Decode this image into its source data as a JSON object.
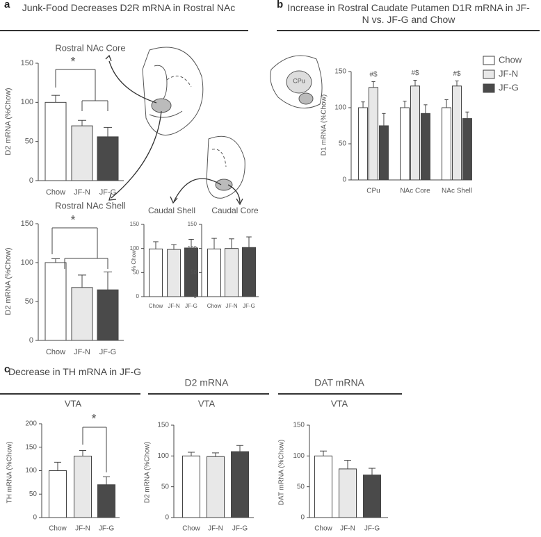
{
  "panels": [
    {
      "letter": "a",
      "title": "Junk-Food Decreases D2R mRNA in Rostral NAc"
    },
    {
      "letter": "b",
      "title": "Increase in Rostral Caudate Putamen D1R mRNA in JF-N vs. JF-G and Chow"
    },
    {
      "letter": "c",
      "title": "Decrease in TH mRNA in JF-G"
    }
  ],
  "brain_label": "CPu",
  "chart_data": [
    {
      "type": "bar",
      "title": "Rostral NAc Core",
      "y_label": "D2 mRNA (%Chow)",
      "categories": [
        "Chow",
        "JF-N",
        "JF-G"
      ],
      "values": [
        100,
        70,
        56
      ],
      "errors": [
        9,
        7,
        12
      ],
      "colors": [
        "#ffffff",
        "#e8e8e8",
        "#4a4a4a"
      ],
      "ylim": [
        0,
        150
      ],
      "yticks": [
        0,
        50,
        100,
        150
      ],
      "annotation": "*"
    },
    {
      "type": "bar",
      "title": "Rostral NAc Shell",
      "y_label": "D2 mRNA (%Chow)",
      "categories": [
        "Chow",
        "JF-N",
        "JF-G"
      ],
      "values": [
        100,
        68,
        65
      ],
      "errors": [
        5,
        16,
        23
      ],
      "colors": [
        "#ffffff",
        "#e8e8e8",
        "#4a4a4a"
      ],
      "ylim": [
        0,
        150
      ],
      "yticks": [
        0,
        50,
        100,
        150
      ],
      "annotation": "*"
    },
    {
      "type": "bar",
      "title": "Caudal Shell",
      "y_label": "% Chow",
      "categories": [
        "Chow",
        "JF-N",
        "JF-G"
      ],
      "values": [
        99,
        98,
        101
      ],
      "errors": [
        15,
        10,
        18
      ],
      "colors": [
        "#ffffff",
        "#e8e8e8",
        "#4a4a4a"
      ],
      "ylim": [
        0,
        150
      ],
      "yticks": [
        0,
        50,
        100,
        150
      ]
    },
    {
      "type": "bar",
      "title": "Caudal Core",
      "categories": [
        "Chow",
        "JF-N",
        "JF-G"
      ],
      "values": [
        99,
        100,
        102
      ],
      "errors": [
        22,
        20,
        22
      ],
      "colors": [
        "#ffffff",
        "#e8e8e8",
        "#4a4a4a"
      ],
      "ylim": [
        0,
        150
      ],
      "yticks": [
        0,
        50,
        100,
        150
      ]
    },
    {
      "type": "bar",
      "y_label": "D1 mRNA (%Chow)",
      "categories": [
        "CPu",
        "NAc Core",
        "NAc Shell"
      ],
      "series": [
        {
          "name": "Chow",
          "color": "#ffffff",
          "values": [
            100,
            100,
            100
          ],
          "errors": [
            8,
            9,
            11
          ]
        },
        {
          "name": "JF-N",
          "color": "#e8e8e8",
          "values": [
            128,
            130,
            130
          ],
          "errors": [
            8,
            8,
            7
          ]
        },
        {
          "name": "JF-G",
          "color": "#4a4a4a",
          "values": [
            75,
            92,
            85
          ],
          "errors": [
            17,
            12,
            9
          ]
        }
      ],
      "annotations": [
        "#$",
        "#$",
        "#$"
      ],
      "ylim": [
        0,
        150
      ],
      "yticks": [
        0,
        50,
        100,
        150
      ],
      "legend": "upper right"
    },
    {
      "type": "bar",
      "subtitle": "VTA",
      "y_label": "TH mRNA  (%Chow)",
      "categories": [
        "Chow",
        "JF-N",
        "JF-G"
      ],
      "values": [
        100,
        131,
        70
      ],
      "errors": [
        18,
        12,
        17
      ],
      "colors": [
        "#ffffff",
        "#e8e8e8",
        "#4a4a4a"
      ],
      "ylim": [
        0,
        200
      ],
      "yticks": [
        0,
        50,
        100,
        150,
        200
      ],
      "annotation": "*"
    },
    {
      "type": "bar",
      "title": "D2 mRNA",
      "subtitle": "VTA",
      "y_label": "D2 mRNA (%Chow)",
      "categories": [
        "Chow",
        "JF-N",
        "JF-G"
      ],
      "values": [
        100,
        99,
        107
      ],
      "errors": [
        6,
        6,
        10
      ],
      "colors": [
        "#ffffff",
        "#e8e8e8",
        "#4a4a4a"
      ],
      "ylim": [
        0,
        150
      ],
      "yticks": [
        0,
        50,
        100,
        150
      ]
    },
    {
      "type": "bar",
      "title": "DAT mRNA",
      "subtitle": "VTA",
      "y_label": "DAT mRNA (%Chow)",
      "categories": [
        "Chow",
        "JF-N",
        "JF-G"
      ],
      "values": [
        100,
        79,
        69
      ],
      "errors": [
        8,
        14,
        11
      ],
      "colors": [
        "#ffffff",
        "#e8e8e8",
        "#4a4a4a"
      ],
      "ylim": [
        0,
        150
      ],
      "yticks": [
        0,
        50,
        100,
        150
      ]
    }
  ]
}
